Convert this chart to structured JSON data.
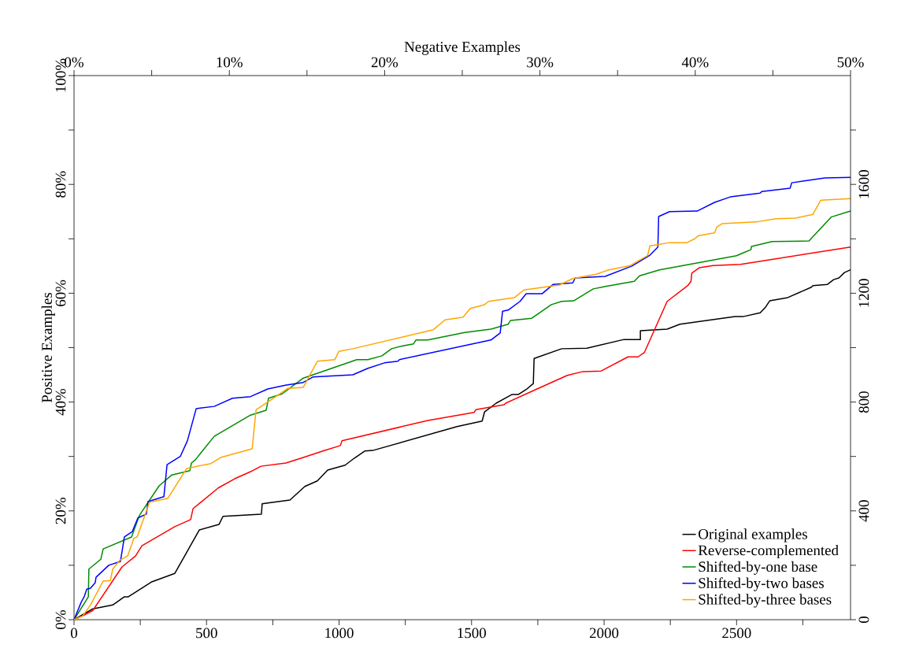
{
  "chart_data": {
    "type": "line",
    "xlabel": null,
    "x2label": "Negative Examples",
    "ylabel": "Positive Examples",
    "xlim": [
      0,
      2930
    ],
    "ylim": [
      0,
      100
    ],
    "x2lim": [
      0,
      50
    ],
    "y2lim": [
      0,
      2000
    ],
    "xticks": [
      0,
      {
        "value": 250,
        "label": null
      },
      500,
      {
        "value": 750,
        "label": null
      },
      1000,
      {
        "value": 1250,
        "label": null
      },
      1500,
      {
        "value": 1750,
        "label": null
      },
      2000,
      {
        "value": 2250,
        "label": null
      },
      2500,
      {
        "value": 2750,
        "label": null
      }
    ],
    "yticks": [
      {
        "value": 0,
        "label": "0%"
      },
      {
        "value": 10,
        "label": null
      },
      {
        "value": 20,
        "label": "20%"
      },
      {
        "value": 30,
        "label": null
      },
      {
        "value": 40,
        "label": "40%"
      },
      {
        "value": 50,
        "label": null
      },
      {
        "value": 60,
        "label": "60%"
      },
      {
        "value": 70,
        "label": null
      },
      {
        "value": 80,
        "label": "80%"
      },
      {
        "value": 90,
        "label": null
      },
      {
        "value": 100,
        "label": "100%"
      }
    ],
    "x2ticks": [
      {
        "value": 0,
        "label": "0%"
      },
      {
        "value": 5,
        "label": null
      },
      {
        "value": 10,
        "label": "10%"
      },
      {
        "value": 15,
        "label": null
      },
      {
        "value": 20,
        "label": "20%"
      },
      {
        "value": 25,
        "label": null
      },
      {
        "value": 30,
        "label": "30%"
      },
      {
        "value": 35,
        "label": null
      },
      {
        "value": 40,
        "label": "40%"
      },
      {
        "value": 45,
        "label": null
      },
      {
        "value": 50,
        "label": "50%"
      }
    ],
    "y2ticks": [
      0,
      {
        "value": 200,
        "label": null
      },
      400,
      {
        "value": 600,
        "label": null
      },
      800,
      {
        "value": 1000,
        "label": null
      },
      1200,
      {
        "value": 1400,
        "label": null
      },
      1600,
      {
        "value": 1800,
        "label": null
      }
    ],
    "legend": "bottom right",
    "series": [
      {
        "name": "Original examples",
        "color": "#000000",
        "x": [
          0,
          71,
          146,
          190,
          205,
          291,
          380,
          473,
          547,
          562,
          707,
          710,
          815,
          871,
          918,
          957,
          1023,
          1058,
          1097,
          1127,
          1445,
          1540,
          1549,
          1593,
          1653,
          1677,
          1706,
          1733,
          1736,
          1840,
          1935,
          2075,
          2137,
          2137,
          2238,
          2286,
          2494,
          2524,
          2589,
          2610,
          2625,
          2693,
          2782,
          2788,
          2842,
          2866,
          2886,
          2907,
          2930
        ],
        "values": [
          0,
          2.0,
          2.7,
          4.2,
          4.2,
          6.9,
          8.5,
          16.5,
          17.5,
          19.0,
          19.4,
          21.3,
          22.0,
          24.5,
          25.5,
          27.5,
          28.4,
          29.7,
          31.0,
          31.1,
          35.5,
          36.5,
          38.2,
          39.8,
          41.4,
          41.4,
          42.3,
          43.4,
          48.0,
          49.8,
          49.9,
          51.5,
          51.5,
          53.1,
          53.4,
          54.3,
          55.7,
          55.7,
          56.4,
          57.5,
          58.6,
          59.2,
          61.1,
          61.4,
          61.6,
          62.5,
          62.8,
          63.8,
          64.3
        ]
      },
      {
        "name": "Reverse-complemented",
        "color": "#ff0000",
        "x": [
          0,
          33,
          71,
          181,
          232,
          256,
          380,
          440,
          449,
          544,
          606,
          666,
          705,
          800,
          865,
          939,
          1005,
          1011,
          1335,
          1510,
          1516,
          1623,
          1629,
          1742,
          1861,
          1920,
          1989,
          2090,
          2128,
          2152,
          2238,
          2316,
          2328,
          2331,
          2360,
          2411,
          2515,
          2930
        ],
        "values": [
          0,
          0.7,
          1.7,
          9.7,
          11.7,
          13.6,
          17.1,
          18.4,
          20.4,
          24.2,
          25.9,
          27.2,
          28.2,
          28.8,
          29.8,
          31.0,
          32.0,
          32.9,
          36.6,
          38.1,
          38.6,
          39.5,
          39.8,
          42.3,
          44.9,
          45.6,
          45.7,
          48.3,
          48.3,
          49.1,
          58.5,
          61.4,
          62.2,
          63.7,
          64.7,
          65.1,
          65.3,
          68.5
        ]
      },
      {
        "name": "Shifted-by-one base",
        "color": "#008b00",
        "x": [
          0,
          54,
          56,
          101,
          110,
          217,
          247,
          321,
          369,
          437,
          443,
          458,
          529,
          666,
          725,
          734,
          785,
          865,
          1067,
          1109,
          1162,
          1198,
          1237,
          1281,
          1290,
          1335,
          1474,
          1573,
          1638,
          1647,
          1727,
          1801,
          1840,
          1885,
          1959,
          2001,
          2114,
          2134,
          2209,
          2500,
          2524,
          2554,
          2556,
          2634,
          2773,
          2857,
          2930
        ],
        "values": [
          0,
          4.2,
          9.3,
          11.1,
          13.0,
          15.2,
          19.2,
          24.6,
          26.6,
          27.4,
          28.8,
          29.4,
          33.7,
          37.6,
          38.5,
          40.7,
          41.5,
          44.4,
          47.8,
          47.8,
          48.5,
          49.8,
          50.3,
          50.7,
          51.4,
          51.4,
          52.8,
          53.4,
          54.3,
          55.0,
          55.4,
          57.9,
          58.5,
          58.6,
          60.8,
          61.2,
          62.2,
          63.2,
          64.3,
          66.9,
          67.4,
          68.0,
          68.6,
          69.5,
          69.6,
          74.0,
          75.1
        ]
      },
      {
        "name": "Shifted-by-two bases",
        "color": "#0000ff",
        "x": [
          0,
          27,
          39,
          48,
          62,
          80,
          83,
          131,
          175,
          190,
          220,
          241,
          273,
          279,
          339,
          351,
          401,
          428,
          461,
          529,
          598,
          666,
          731,
          797,
          865,
          901,
          1052,
          1109,
          1171,
          1222,
          1228,
          1573,
          1608,
          1617,
          1638,
          1683,
          1706,
          1766,
          1807,
          1882,
          1891,
          2004,
          2105,
          2173,
          2203,
          2206,
          2247,
          2351,
          2417,
          2476,
          2589,
          2595,
          2702,
          2708,
          2833,
          2930
        ],
        "values": [
          0,
          3.2,
          4.3,
          5.6,
          5.8,
          6.8,
          7.8,
          10.0,
          10.7,
          15.2,
          16.2,
          18.7,
          19.4,
          21.7,
          22.6,
          28.5,
          30.0,
          32.9,
          38.8,
          39.2,
          40.7,
          41.0,
          42.4,
          43.1,
          43.6,
          44.6,
          45.0,
          46.2,
          47.2,
          47.5,
          47.8,
          51.4,
          52.7,
          56.7,
          56.9,
          58.5,
          59.9,
          59.9,
          61.6,
          61.9,
          62.8,
          63.1,
          65.0,
          67.0,
          68.5,
          74.1,
          75.0,
          75.1,
          76.7,
          77.7,
          78.4,
          78.7,
          79.3,
          80.3,
          81.2,
          81.3
        ]
      },
      {
        "name": "Shifted-by-three bases",
        "color": "#ffa500",
        "x": [
          0,
          33,
          62,
          110,
          137,
          146,
          172,
          202,
          217,
          226,
          238,
          285,
          354,
          425,
          517,
          553,
          672,
          687,
          725,
          806,
          865,
          918,
          984,
          999,
          1052,
          1356,
          1400,
          1468,
          1495,
          1549,
          1564,
          1662,
          1697,
          1831,
          1882,
          1971,
          2018,
          2099,
          2164,
          2173,
          2247,
          2313,
          2342,
          2357,
          2417,
          2426,
          2446,
          2574,
          2649,
          2723,
          2788,
          2818,
          2930
        ],
        "values": [
          0,
          0.7,
          2.7,
          7.1,
          7.2,
          9.3,
          10.9,
          11.7,
          13.7,
          15.0,
          15.2,
          21.6,
          22.3,
          27.8,
          28.7,
          29.8,
          31.4,
          38.6,
          39.8,
          42.5,
          42.7,
          47.5,
          47.8,
          49.3,
          49.8,
          53.3,
          55.1,
          55.6,
          57.2,
          57.9,
          58.5,
          59.2,
          60.6,
          61.5,
          62.7,
          63.5,
          64.3,
          65.1,
          66.9,
          68.7,
          69.3,
          69.3,
          70.0,
          70.6,
          71.1,
          72.2,
          72.8,
          73.1,
          73.7,
          73.8,
          74.5,
          77.1,
          77.4
        ]
      }
    ]
  }
}
